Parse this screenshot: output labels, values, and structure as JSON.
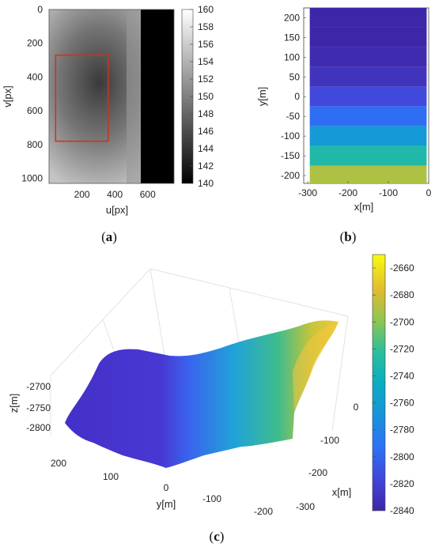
{
  "chart_data": [
    {
      "panel": "(a)",
      "type": "heatmap",
      "xlabel": "u[px]",
      "ylabel": "v[px]",
      "x_ticks": [
        200,
        400,
        600
      ],
      "y_ticks": [
        0,
        200,
        400,
        600,
        800,
        1000
      ],
      "xlim": [
        0,
        760
      ],
      "ylim": [
        1030,
        0
      ],
      "colorbar": {
        "min": 140,
        "max": 160,
        "ticks": [
          140,
          142,
          144,
          146,
          148,
          150,
          152,
          154,
          156,
          158,
          160
        ],
        "colormap": "gray"
      },
      "annotations": [
        {
          "type": "rectangle",
          "color": "#d03020",
          "u": [
            40,
            360
          ],
          "v": [
            270,
            780
          ]
        }
      ],
      "no_data_region": {
        "u": [
          560,
          760
        ],
        "v": [
          0,
          1030
        ],
        "color": "#000000"
      }
    },
    {
      "panel": "(b)",
      "type": "heatmap",
      "xlabel": "x[m]",
      "ylabel": "y[m]",
      "x_ticks": [
        -300,
        -200,
        -100,
        0
      ],
      "y_ticks": [
        200,
        150,
        100,
        50,
        0,
        -50,
        -100,
        -150,
        -200
      ],
      "xlim": [
        -310,
        0
      ],
      "ylim": [
        -220,
        225
      ],
      "rows": [
        {
          "y": 200,
          "value": -2840
        },
        {
          "y": 150,
          "value": -2840
        },
        {
          "y": 100,
          "value": -2836
        },
        {
          "y": 50,
          "value": -2830
        },
        {
          "y": 0,
          "value": -2815
        },
        {
          "y": -50,
          "value": -2795
        },
        {
          "y": -100,
          "value": -2765
        },
        {
          "y": -150,
          "value": -2730
        },
        {
          "y": -200,
          "value": -2690
        }
      ]
    },
    {
      "panel": "(c)",
      "type": "surface",
      "xlabel": "x[m]",
      "ylabel": "y[m]",
      "zlabel": "z[m]",
      "x_ticks": [
        0,
        -100,
        -200,
        -300
      ],
      "y_ticks": [
        200,
        100,
        0,
        -100,
        -200
      ],
      "z_ticks": [
        -2700,
        -2750,
        -2800
      ],
      "colorbar": {
        "min": -2840,
        "max": -2650,
        "ticks": [
          -2660,
          -2680,
          -2700,
          -2720,
          -2740,
          -2760,
          -2780,
          -2800,
          -2820,
          -2840
        ],
        "colormap": "parula"
      }
    }
  ],
  "captions": {
    "a_open": "(",
    "a_letter": "a",
    "a_close": ")",
    "b_open": "(",
    "b_letter": "b",
    "b_close": ")",
    "c_open": "(",
    "c_letter": "c",
    "c_close": ")"
  },
  "colors": {
    "rect": "#d03020",
    "parula_low": "#3e26a8",
    "parula_high": "#f9fb0e"
  }
}
